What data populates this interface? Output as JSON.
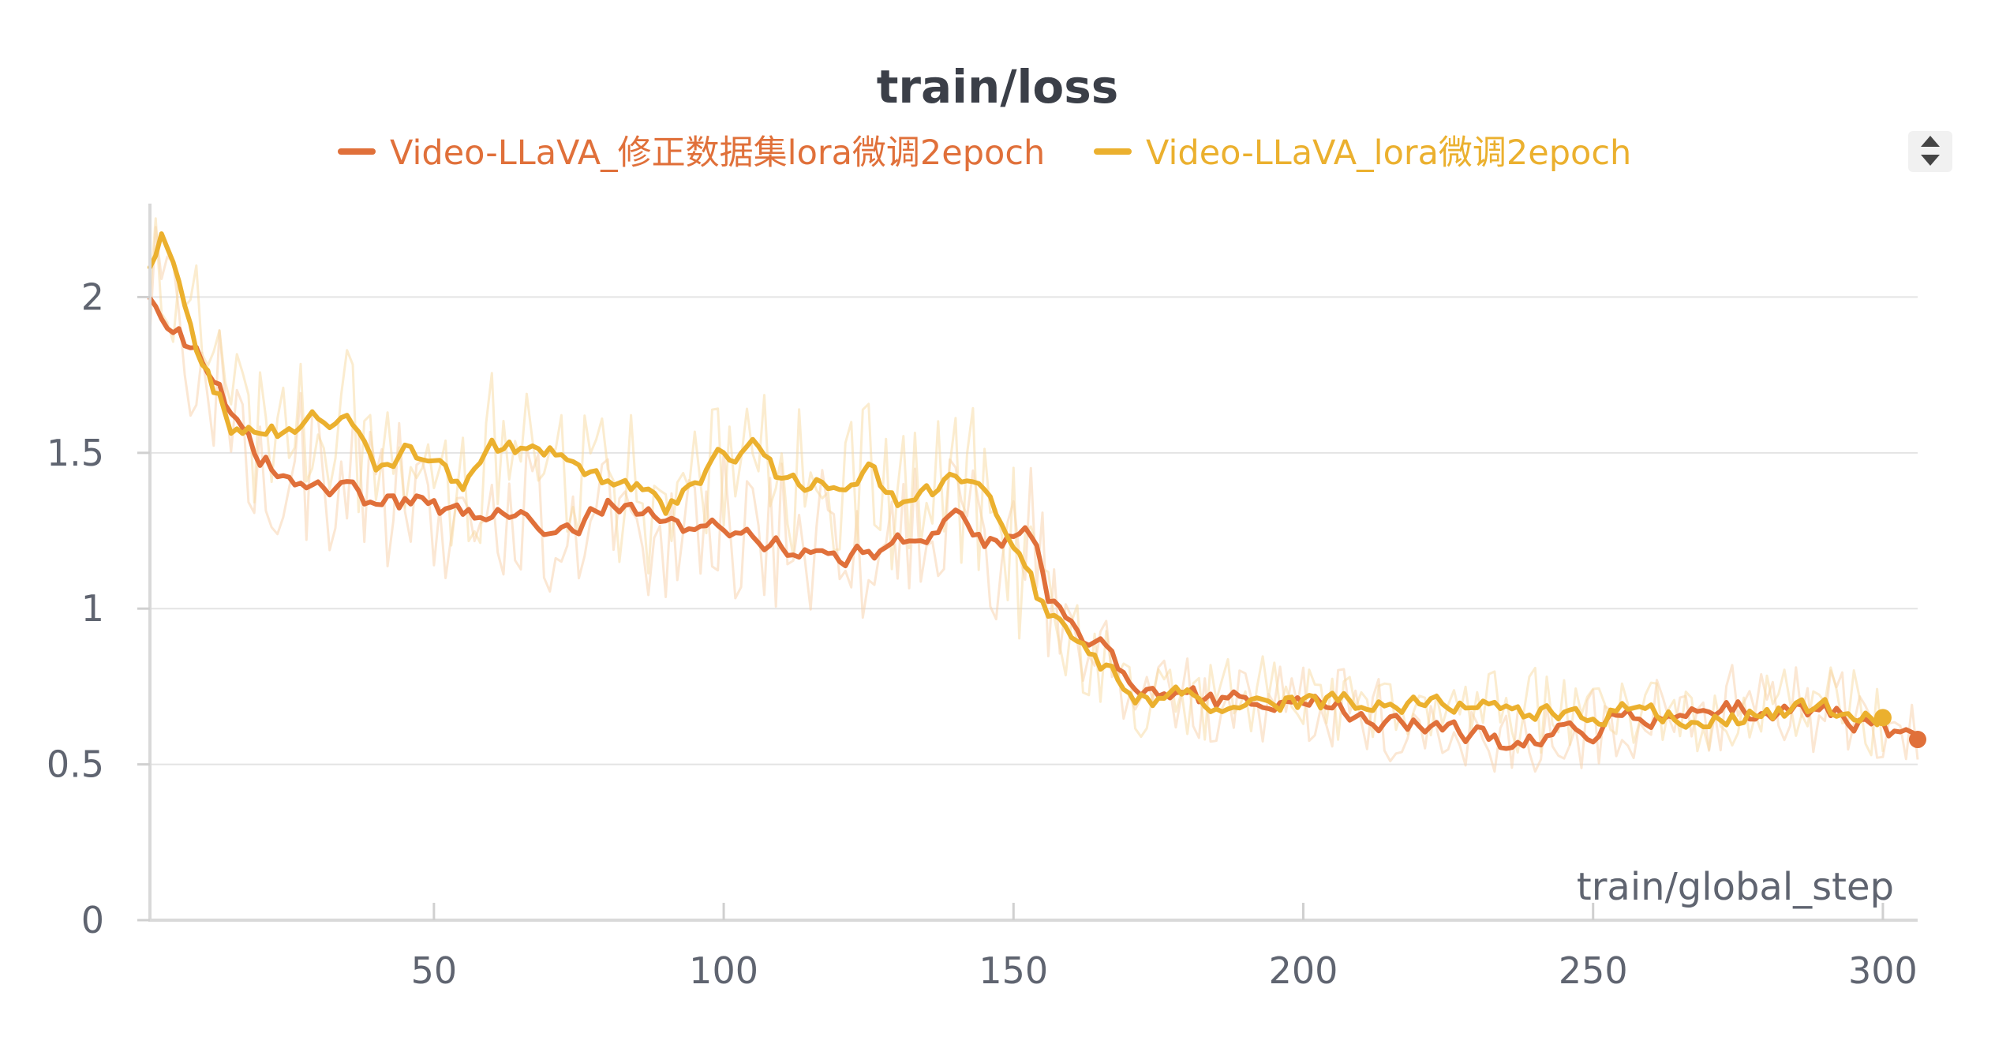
{
  "chart_data": {
    "type": "line",
    "title": "train/loss",
    "xlabel": "train/global_step",
    "ylabel": "",
    "xlim": [
      1,
      306
    ],
    "ylim": [
      0,
      2.3
    ],
    "xticks": [
      50,
      100,
      150,
      200,
      250,
      300
    ],
    "xtick_labels": [
      "50",
      "100",
      "150",
      "200",
      "250",
      "300"
    ],
    "yticks": [
      0,
      0.5,
      1,
      1.5,
      2
    ],
    "ytick_labels": [
      "0",
      "0.5",
      "1",
      "1.5",
      "2"
    ],
    "grid": true,
    "legend_position": "top",
    "series": [
      {
        "name": "Video-LLaVA_修正数据集lora微调2epoch",
        "color": "#e0703a",
        "raw_color": "#f7cfa8",
        "last": {
          "x": 306,
          "y": 0.58
        },
        "x": [
          1,
          10,
          20,
          25,
          30,
          40,
          45,
          52,
          60,
          65,
          70,
          75,
          80,
          88,
          95,
          100,
          105,
          110,
          115,
          120,
          125,
          130,
          135,
          140,
          145,
          148,
          150,
          153,
          156,
          160,
          165,
          170,
          180,
          190,
          200,
          210,
          220,
          230,
          235,
          240,
          245,
          250,
          255,
          260,
          265,
          270,
          275,
          280,
          290,
          300,
          306
        ],
        "y": [
          2.0,
          1.8,
          1.47,
          1.45,
          1.41,
          1.33,
          1.34,
          1.32,
          1.3,
          1.28,
          1.26,
          1.25,
          1.34,
          1.29,
          1.22,
          1.28,
          1.24,
          1.21,
          1.19,
          1.18,
          1.18,
          1.2,
          1.25,
          1.3,
          1.22,
          1.2,
          1.25,
          1.25,
          1.05,
          0.93,
          0.87,
          0.75,
          0.71,
          0.7,
          0.7,
          0.67,
          0.62,
          0.59,
          0.55,
          0.57,
          0.6,
          0.62,
          0.64,
          0.66,
          0.69,
          0.68,
          0.68,
          0.67,
          0.68,
          0.6,
          0.58
        ]
      },
      {
        "name": "Video-LLaVA_lora微调2epoch",
        "color": "#ebb02e",
        "raw_color": "#f8d9a0",
        "last": {
          "x": 300,
          "y": 0.65
        },
        "x": [
          1,
          3,
          10,
          15,
          20,
          25,
          30,
          35,
          40,
          45,
          50,
          55,
          60,
          65,
          70,
          75,
          80,
          85,
          90,
          95,
          100,
          105,
          110,
          115,
          120,
          125,
          130,
          135,
          140,
          145,
          150,
          155,
          160,
          165,
          170,
          180,
          190,
          200,
          210,
          220,
          230,
          240,
          250,
          260,
          270,
          280,
          290,
          300
        ],
        "y": [
          2.1,
          2.2,
          1.8,
          1.6,
          1.55,
          1.58,
          1.6,
          1.62,
          1.45,
          1.5,
          1.46,
          1.4,
          1.5,
          1.52,
          1.5,
          1.47,
          1.42,
          1.38,
          1.32,
          1.4,
          1.48,
          1.52,
          1.42,
          1.38,
          1.4,
          1.45,
          1.35,
          1.38,
          1.4,
          1.38,
          1.2,
          1.0,
          0.9,
          0.82,
          0.71,
          0.71,
          0.71,
          0.7,
          0.7,
          0.7,
          0.67,
          0.67,
          0.66,
          0.68,
          0.64,
          0.66,
          0.68,
          0.65
        ]
      }
    ]
  }
}
